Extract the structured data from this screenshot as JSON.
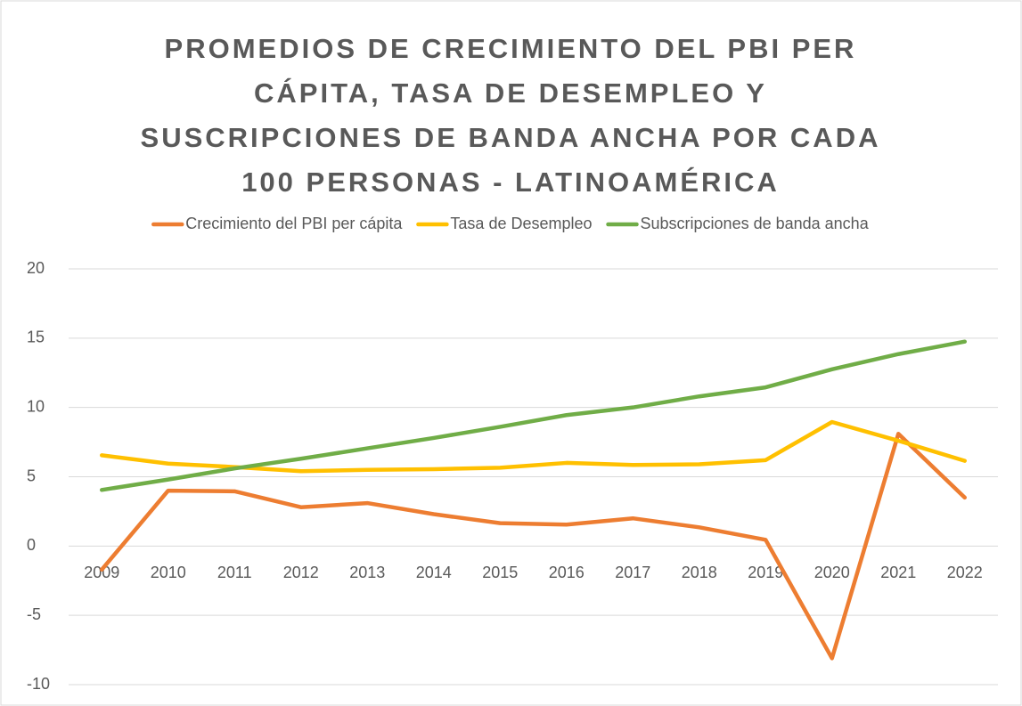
{
  "chart_data": {
    "type": "line",
    "title": "PROMEDIOS DE CRECIMIENTO DEL PBI PER CÁPITA, TASA DE DESEMPLEO Y SUSCRIPCIONES DE BANDA ANCHA POR CADA 100 PERSONAS - LATINOAMÉRICA",
    "categories": [
      "2009",
      "2010",
      "2011",
      "2012",
      "2013",
      "2014",
      "2015",
      "2016",
      "2017",
      "2018",
      "2019",
      "2020",
      "2021",
      "2022"
    ],
    "series": [
      {
        "name": "Crecimiento del PBI per cápita",
        "color": "#ed7d31",
        "values": [
          -1.7,
          4.0,
          3.95,
          2.8,
          3.1,
          2.3,
          1.65,
          1.55,
          2.0,
          1.35,
          0.45,
          -8.1,
          8.1,
          3.5
        ]
      },
      {
        "name": "Tasa de Desempleo",
        "color": "#ffc000",
        "values": [
          6.55,
          5.95,
          5.7,
          5.4,
          5.5,
          5.55,
          5.65,
          6.0,
          5.85,
          5.9,
          6.2,
          8.95,
          7.6,
          6.15
        ]
      },
      {
        "name": "Subscripciones de banda ancha",
        "color": "#70ad47",
        "values": [
          4.05,
          4.8,
          5.6,
          6.3,
          7.05,
          7.8,
          8.6,
          9.45,
          10.0,
          10.8,
          11.45,
          12.75,
          13.85,
          14.75
        ]
      }
    ],
    "ylim": [
      -10,
      20
    ],
    "yticks": [
      -10,
      -5,
      0,
      5,
      10,
      15,
      20
    ],
    "grid": true,
    "legend": "top"
  }
}
